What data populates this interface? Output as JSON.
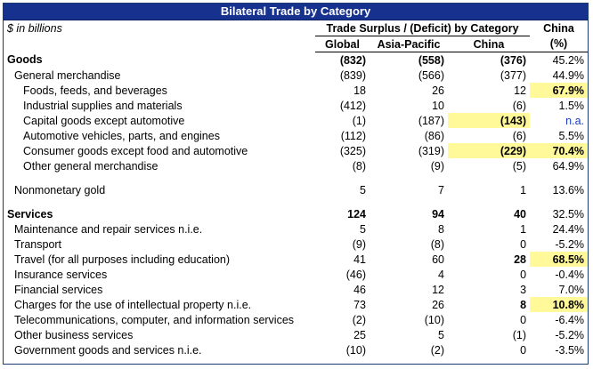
{
  "title": "Bilateral Trade by Category",
  "units": "$ in billions",
  "header": {
    "span_label": "Trade Surplus / (Deficit) by Category",
    "china_top": "China",
    "columns": [
      "Global",
      "Asia-Pacific",
      "China",
      "(%)"
    ]
  },
  "rows": [
    {
      "label": "Goods",
      "global": "(832)",
      "asia": "(558)",
      "china": "(376)",
      "pct": "45.2%"
    },
    {
      "label": "General merchandise",
      "global": "(839)",
      "asia": "(566)",
      "china": "(377)",
      "pct": "44.9%"
    },
    {
      "label": "Foods, feeds, and beverages",
      "global": "18",
      "asia": "26",
      "china": "12",
      "pct": "67.9%"
    },
    {
      "label": "Industrial supplies and materials",
      "global": "(412)",
      "asia": "10",
      "china": "(6)",
      "pct": "1.5%"
    },
    {
      "label": "Capital goods except automotive",
      "global": "(1)",
      "asia": "(187)",
      "china": "(143)",
      "pct": "n.a."
    },
    {
      "label": "Automotive vehicles, parts, and engines",
      "global": "(112)",
      "asia": "(86)",
      "china": "(6)",
      "pct": "5.5%"
    },
    {
      "label": "Consumer goods except food and automotive",
      "global": "(325)",
      "asia": "(319)",
      "china": "(229)",
      "pct": "70.4%"
    },
    {
      "label": "Other general merchandise",
      "global": "(8)",
      "asia": "(9)",
      "china": "(5)",
      "pct": "64.9%"
    },
    {
      "label": "Nonmonetary gold",
      "global": "5",
      "asia": "7",
      "china": "1",
      "pct": "13.6%"
    },
    {
      "label": "Services",
      "global": "124",
      "asia": "94",
      "china": "40",
      "pct": "32.5%"
    },
    {
      "label": "Maintenance and repair services n.i.e.",
      "global": "5",
      "asia": "8",
      "china": "1",
      "pct": "24.4%"
    },
    {
      "label": "Transport",
      "global": "(9)",
      "asia": "(8)",
      "china": "0",
      "pct": "-5.2%"
    },
    {
      "label": "Travel (for all purposes including education)",
      "global": "41",
      "asia": "60",
      "china": "28",
      "pct": "68.5%"
    },
    {
      "label": "Insurance services",
      "global": "(46)",
      "asia": "4",
      "china": "0",
      "pct": "-0.4%"
    },
    {
      "label": "Financial services",
      "global": "46",
      "asia": "12",
      "china": "3",
      "pct": "7.0%"
    },
    {
      "label": "Charges for the use of intellectual property n.i.e.",
      "global": "73",
      "asia": "26",
      "china": "8",
      "pct": "10.8%"
    },
    {
      "label": "Telecommunications, computer, and information services",
      "global": "(2)",
      "asia": "(10)",
      "china": "0",
      "pct": "-6.4%"
    },
    {
      "label": "Other business services",
      "global": "25",
      "asia": "5",
      "china": "(1)",
      "pct": "-5.2%"
    },
    {
      "label": "Government goods and services n.i.e.",
      "global": "(10)",
      "asia": "(2)",
      "china": "0",
      "pct": "-3.5%"
    }
  ],
  "colors": {
    "title_bg": "#17318f",
    "highlight": "#fff99a",
    "na_text": "#1a3fbf"
  }
}
